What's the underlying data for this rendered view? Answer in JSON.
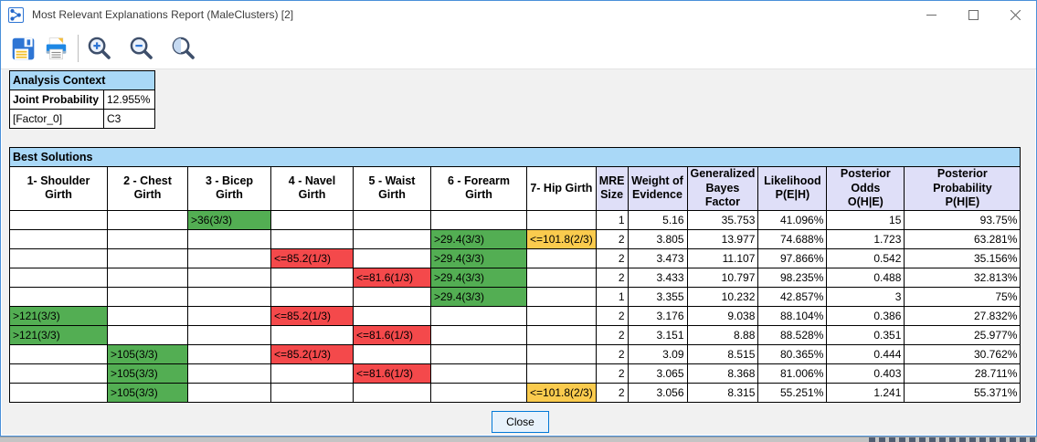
{
  "window": {
    "title": "Most Relevant Explanations Report (MaleClusters) [2]"
  },
  "icons": {
    "titlebar": "network-graph-icon",
    "toolbar": [
      "save-icon",
      "print-icon",
      "zoom-in-icon",
      "zoom-out-icon",
      "zoom-actual-icon"
    ],
    "window_controls": [
      "minimize-icon",
      "maximize-icon",
      "close-icon"
    ]
  },
  "analysis_context": {
    "title": "Analysis Context",
    "rows": [
      {
        "label": "Joint Probability",
        "value": "12.955%"
      },
      {
        "label": "[Factor_0]",
        "value": "C3"
      }
    ]
  },
  "best_solutions": {
    "title": "Best Solutions",
    "columns": [
      {
        "label": "1- Shoulder Girth",
        "group": "factor"
      },
      {
        "label": "2 - Chest Girth",
        "group": "factor"
      },
      {
        "label": "3 - Bicep Girth",
        "group": "factor"
      },
      {
        "label": "4 - Navel Girth",
        "group": "factor"
      },
      {
        "label": "5 - Waist Girth",
        "group": "factor"
      },
      {
        "label": "6 - Forearm Girth",
        "group": "factor"
      },
      {
        "label": "7- Hip Girth",
        "group": "factor"
      },
      {
        "label": "MRE\nSize",
        "group": "stat"
      },
      {
        "label": "Weight of\nEvidence",
        "group": "stat"
      },
      {
        "label": "Generalized\nBayes Factor",
        "group": "stat"
      },
      {
        "label": "Likelihood\nP(E|H)",
        "group": "stat"
      },
      {
        "label": "Posterior Odds\nO(H|E)",
        "group": "stat"
      },
      {
        "label": "Posterior Probability\nP(H|E)",
        "group": "stat"
      }
    ],
    "rows": [
      [
        "",
        "",
        {
          "v": ">36(3/3)",
          "c": "green"
        },
        "",
        "",
        "",
        "",
        "1",
        "5.16",
        "35.753",
        "41.096%",
        "15",
        "93.75%"
      ],
      [
        "",
        "",
        "",
        "",
        "",
        {
          "v": ">29.4(3/3)",
          "c": "green"
        },
        {
          "v": "<=101.8(2/3)",
          "c": "yellow"
        },
        "2",
        "3.805",
        "13.977",
        "74.688%",
        "1.723",
        "63.281%"
      ],
      [
        "",
        "",
        "",
        {
          "v": "<=85.2(1/3)",
          "c": "red"
        },
        "",
        {
          "v": ">29.4(3/3)",
          "c": "green"
        },
        "",
        "2",
        "3.473",
        "11.107",
        "97.866%",
        "0.542",
        "35.156%"
      ],
      [
        "",
        "",
        "",
        "",
        {
          "v": "<=81.6(1/3)",
          "c": "red"
        },
        {
          "v": ">29.4(3/3)",
          "c": "green"
        },
        "",
        "2",
        "3.433",
        "10.797",
        "98.235%",
        "0.488",
        "32.813%"
      ],
      [
        "",
        "",
        "",
        "",
        "",
        {
          "v": ">29.4(3/3)",
          "c": "green"
        },
        "",
        "1",
        "3.355",
        "10.232",
        "42.857%",
        "3",
        "75%"
      ],
      [
        {
          "v": ">121(3/3)",
          "c": "green"
        },
        "",
        "",
        {
          "v": "<=85.2(1/3)",
          "c": "red"
        },
        "",
        "",
        "",
        "2",
        "3.176",
        "9.038",
        "88.104%",
        "0.386",
        "27.832%"
      ],
      [
        {
          "v": ">121(3/3)",
          "c": "green"
        },
        "",
        "",
        "",
        {
          "v": "<=81.6(1/3)",
          "c": "red"
        },
        "",
        "",
        "2",
        "3.151",
        "8.88",
        "88.528%",
        "0.351",
        "25.977%"
      ],
      [
        "",
        {
          "v": ">105(3/3)",
          "c": "green"
        },
        "",
        {
          "v": "<=85.2(1/3)",
          "c": "red"
        },
        "",
        "",
        "",
        "2",
        "3.09",
        "8.515",
        "80.365%",
        "0.444",
        "30.762%"
      ],
      [
        "",
        {
          "v": ">105(3/3)",
          "c": "green"
        },
        "",
        "",
        {
          "v": "<=81.6(1/3)",
          "c": "red"
        },
        "",
        "",
        "2",
        "3.065",
        "8.368",
        "81.006%",
        "0.403",
        "28.711%"
      ],
      [
        "",
        {
          "v": ">105(3/3)",
          "c": "green"
        },
        "",
        "",
        "",
        "",
        {
          "v": "<=101.8(2/3)",
          "c": "yellow"
        },
        "2",
        "3.056",
        "8.315",
        "55.251%",
        "1.241",
        "55.371%"
      ]
    ]
  },
  "close_button": {
    "label": "Close"
  },
  "colors": {
    "constraint_green": "#53AE53",
    "constraint_red": "#F4494B",
    "constraint_yellow": "#FACB4E",
    "header_blue": "#A9D8F7",
    "header_lavender": "#DFDFF8",
    "accent_blue": "#0078D7"
  }
}
